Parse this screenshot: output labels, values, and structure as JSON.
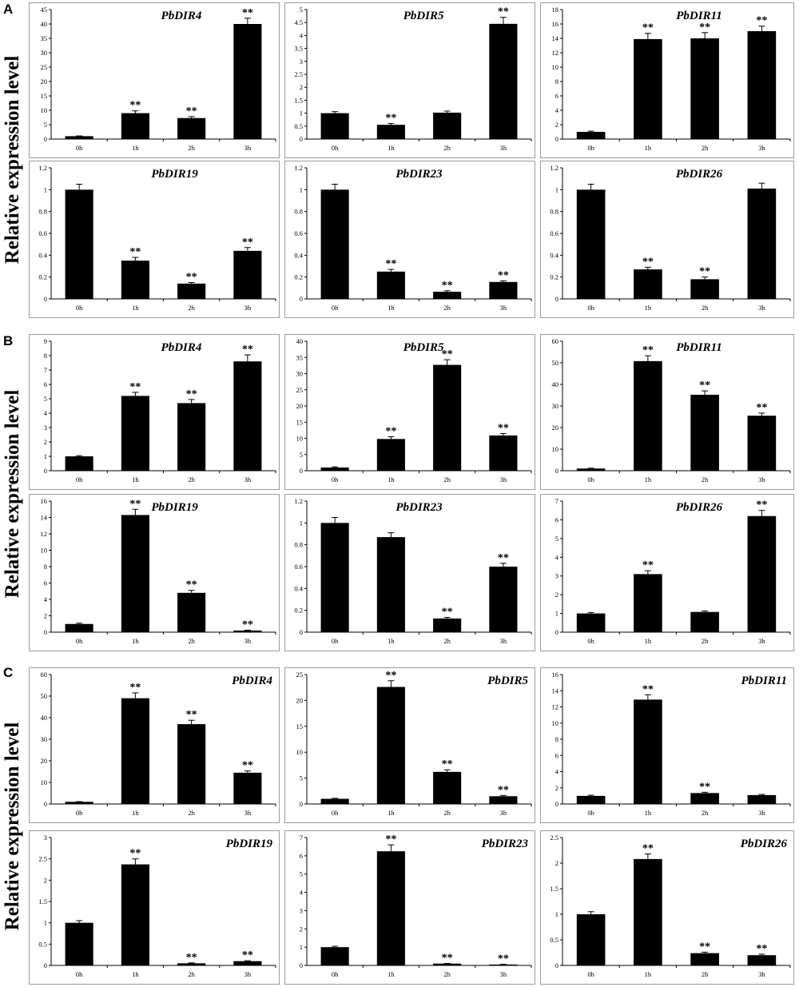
{
  "figure": {
    "ylabel": "Relative expression level",
    "sections": [
      {
        "letter": "A"
      },
      {
        "letter": "B"
      },
      {
        "letter": "C"
      }
    ]
  },
  "chart_data": [
    {
      "type": "bar",
      "section": "A",
      "title": "PbDIR4",
      "categories": [
        "0h",
        "1h",
        "2h",
        "3h"
      ],
      "values": [
        1,
        9,
        7.3,
        40
      ],
      "errors": [
        0.1,
        0.8,
        0.5,
        2.0
      ],
      "significance": [
        "",
        "**",
        "**",
        "**"
      ],
      "ylim": [
        0,
        45
      ],
      "yticks": [
        0,
        5,
        10,
        15,
        20,
        25,
        30,
        35,
        40,
        45
      ],
      "bar_color": "#000000"
    },
    {
      "type": "bar",
      "section": "A",
      "title": "PbDIR5",
      "categories": [
        "0h",
        "1h",
        "2h",
        "3h"
      ],
      "values": [
        1,
        0.55,
        1.02,
        4.45
      ],
      "errors": [
        0.06,
        0.05,
        0.06,
        0.25
      ],
      "significance": [
        "",
        "**",
        "",
        "**"
      ],
      "ylim": [
        0,
        5
      ],
      "yticks": [
        0,
        0.5,
        1,
        1.5,
        2,
        2.5,
        3,
        3.5,
        4,
        4.5,
        5
      ],
      "bar_color": "#000000"
    },
    {
      "type": "bar",
      "section": "A",
      "title": "PbDIR11",
      "categories": [
        "0h",
        "1h",
        "2h",
        "3h"
      ],
      "values": [
        1,
        13.9,
        14,
        15
      ],
      "errors": [
        0.1,
        0.8,
        0.8,
        0.7
      ],
      "significance": [
        "",
        "**",
        "**",
        "**"
      ],
      "ylim": [
        0,
        18
      ],
      "yticks": [
        0,
        2,
        4,
        6,
        8,
        10,
        12,
        14,
        16,
        18
      ],
      "bar_color": "#000000"
    },
    {
      "type": "bar",
      "section": "A",
      "title": "PbDIR19",
      "categories": [
        "0h",
        "1h",
        "2h",
        "3h"
      ],
      "values": [
        1,
        0.35,
        0.14,
        0.44
      ],
      "errors": [
        0.05,
        0.03,
        0.01,
        0.03
      ],
      "significance": [
        "",
        "**",
        "**",
        "**"
      ],
      "ylim": [
        0,
        1.2
      ],
      "yticks": [
        0,
        0.2,
        0.4,
        0.6,
        0.8,
        1,
        1.2
      ],
      "bar_color": "#000000"
    },
    {
      "type": "bar",
      "section": "A",
      "title": "PbDIR23",
      "categories": [
        "0h",
        "1h",
        "2h",
        "3h"
      ],
      "values": [
        1,
        0.25,
        0.065,
        0.155
      ],
      "errors": [
        0.05,
        0.02,
        0.01,
        0.01
      ],
      "significance": [
        "",
        "**",
        "**",
        "**"
      ],
      "ylim": [
        0,
        1.2
      ],
      "yticks": [
        0,
        0.2,
        0.4,
        0.6,
        0.8,
        1,
        1.2
      ],
      "bar_color": "#000000"
    },
    {
      "type": "bar",
      "section": "A",
      "title": "PbDIR26",
      "categories": [
        "0h",
        "1h",
        "2h",
        "3h"
      ],
      "values": [
        1,
        0.27,
        0.18,
        1.01
      ],
      "errors": [
        0.05,
        0.02,
        0.02,
        0.05
      ],
      "significance": [
        "",
        "**",
        "**",
        ""
      ],
      "ylim": [
        0,
        1.2
      ],
      "yticks": [
        0,
        0.2,
        0.4,
        0.6,
        0.8,
        1,
        1.2
      ],
      "bar_color": "#000000"
    },
    {
      "type": "bar",
      "section": "B",
      "title": "PbDIR4",
      "categories": [
        "0h",
        "1h",
        "2h",
        "3h"
      ],
      "values": [
        1,
        5.2,
        4.7,
        7.6
      ],
      "errors": [
        0.05,
        0.25,
        0.25,
        0.45
      ],
      "significance": [
        "",
        "**",
        "**",
        "**"
      ],
      "ylim": [
        0,
        9
      ],
      "yticks": [
        0,
        1,
        2,
        3,
        4,
        5,
        6,
        7,
        8,
        9
      ],
      "bar_color": "#000000"
    },
    {
      "type": "bar",
      "section": "B",
      "title": "PbDIR5",
      "categories": [
        "0h",
        "1h",
        "2h",
        "3h"
      ],
      "values": [
        1,
        9.8,
        32.7,
        10.9
      ],
      "errors": [
        0.2,
        0.7,
        1.6,
        0.6
      ],
      "significance": [
        "",
        "**",
        "**",
        "**"
      ],
      "ylim": [
        0,
        40
      ],
      "yticks": [
        0,
        5,
        10,
        15,
        20,
        25,
        30,
        35,
        40
      ],
      "bar_color": "#000000"
    },
    {
      "type": "bar",
      "section": "B",
      "title": "PbDIR11",
      "categories": [
        "0h",
        "1h",
        "2h",
        "3h"
      ],
      "values": [
        1,
        50.8,
        35.2,
        25.5
      ],
      "errors": [
        0.2,
        2.5,
        1.8,
        1.2
      ],
      "significance": [
        "",
        "**",
        "**",
        "**"
      ],
      "ylim": [
        0,
        60
      ],
      "yticks": [
        0,
        10,
        20,
        30,
        40,
        50,
        60
      ],
      "bar_color": "#000000"
    },
    {
      "type": "bar",
      "section": "B",
      "title": "PbDIR19",
      "categories": [
        "0h",
        "1h",
        "2h",
        "3h"
      ],
      "values": [
        1,
        14.3,
        4.8,
        0.2
      ],
      "errors": [
        0.1,
        0.7,
        0.3,
        0.05
      ],
      "significance": [
        "",
        "**",
        "**",
        "**"
      ],
      "ylim": [
        0,
        16
      ],
      "yticks": [
        0,
        2,
        4,
        6,
        8,
        10,
        12,
        14,
        16
      ],
      "bar_color": "#000000"
    },
    {
      "type": "bar",
      "section": "B",
      "title": "PbDIR23",
      "categories": [
        "0h",
        "1h",
        "2h",
        "3h"
      ],
      "values": [
        1,
        0.87,
        0.125,
        0.6
      ],
      "errors": [
        0.05,
        0.04,
        0.01,
        0.03
      ],
      "significance": [
        "",
        "",
        "**",
        "**"
      ],
      "ylim": [
        0,
        1.2
      ],
      "yticks": [
        0,
        0.2,
        0.4,
        0.6,
        0.8,
        1,
        1.2
      ],
      "bar_color": "#000000"
    },
    {
      "type": "bar",
      "section": "B",
      "title": "PbDIR26",
      "categories": [
        "0h",
        "1h",
        "2h",
        "3h"
      ],
      "values": [
        1,
        3.1,
        1.08,
        6.2
      ],
      "errors": [
        0.05,
        0.18,
        0.05,
        0.3
      ],
      "significance": [
        "",
        "**",
        "",
        "**"
      ],
      "ylim": [
        0,
        7
      ],
      "yticks": [
        0,
        1,
        2,
        3,
        4,
        5,
        6,
        7
      ],
      "bar_color": "#000000"
    },
    {
      "type": "bar",
      "section": "C",
      "title": "PbDIR4",
      "categories": [
        "0h",
        "1h",
        "2h",
        "3h"
      ],
      "values": [
        1,
        49,
        37,
        14.5
      ],
      "errors": [
        0.1,
        2.5,
        1.8,
        0.8
      ],
      "significance": [
        "",
        "**",
        "**",
        "**"
      ],
      "ylim": [
        0,
        60
      ],
      "yticks": [
        0,
        10,
        20,
        30,
        40,
        50,
        60
      ],
      "bar_color": "#000000"
    },
    {
      "type": "bar",
      "section": "C",
      "title": "PbDIR5",
      "categories": [
        "0h",
        "1h",
        "2h",
        "3h"
      ],
      "values": [
        1,
        22.6,
        6.2,
        1.5
      ],
      "errors": [
        0.1,
        1.2,
        0.4,
        0.15
      ],
      "significance": [
        "",
        "**",
        "**",
        "**"
      ],
      "ylim": [
        0,
        25
      ],
      "yticks": [
        0,
        5,
        10,
        15,
        20,
        25
      ],
      "bar_color": "#000000"
    },
    {
      "type": "bar",
      "section": "C",
      "title": "PbDIR11",
      "categories": [
        "0h",
        "1h",
        "2h",
        "3h"
      ],
      "values": [
        1,
        12.9,
        1.35,
        1.1
      ],
      "errors": [
        0.08,
        0.6,
        0.1,
        0.08
      ],
      "significance": [
        "",
        "**",
        "**",
        ""
      ],
      "ylim": [
        0,
        16
      ],
      "yticks": [
        0,
        2,
        4,
        6,
        8,
        10,
        12,
        14,
        16
      ],
      "bar_color": "#000000"
    },
    {
      "type": "bar",
      "section": "C",
      "title": "PbDIR19",
      "categories": [
        "0h",
        "1h",
        "2h",
        "3h"
      ],
      "values": [
        1,
        2.37,
        0.05,
        0.1
      ],
      "errors": [
        0.05,
        0.13,
        0.01,
        0.01
      ],
      "significance": [
        "",
        "**",
        "**",
        "**"
      ],
      "ylim": [
        0,
        3
      ],
      "yticks": [
        0,
        0.5,
        1,
        1.5,
        2,
        2.5,
        3
      ],
      "bar_color": "#000000"
    },
    {
      "type": "bar",
      "section": "C",
      "title": "PbDIR23",
      "categories": [
        "0h",
        "1h",
        "2h",
        "3h"
      ],
      "values": [
        1,
        6.25,
        0.1,
        0.05
      ],
      "errors": [
        0.05,
        0.35,
        0.01,
        0.01
      ],
      "significance": [
        "",
        "**",
        "**",
        "**"
      ],
      "ylim": [
        0,
        7
      ],
      "yticks": [
        0,
        1,
        2,
        3,
        4,
        5,
        6,
        7
      ],
      "bar_color": "#000000"
    },
    {
      "type": "bar",
      "section": "C",
      "title": "PbDIR26",
      "categories": [
        "0h",
        "1h",
        "2h",
        "3h"
      ],
      "values": [
        1,
        2.08,
        0.24,
        0.2
      ],
      "errors": [
        0.05,
        0.1,
        0.02,
        0.02
      ],
      "significance": [
        "",
        "**",
        "**",
        "**"
      ],
      "ylim": [
        0,
        2.5
      ],
      "yticks": [
        0,
        0.5,
        1,
        1.5,
        2,
        2.5
      ],
      "bar_color": "#000000"
    }
  ]
}
